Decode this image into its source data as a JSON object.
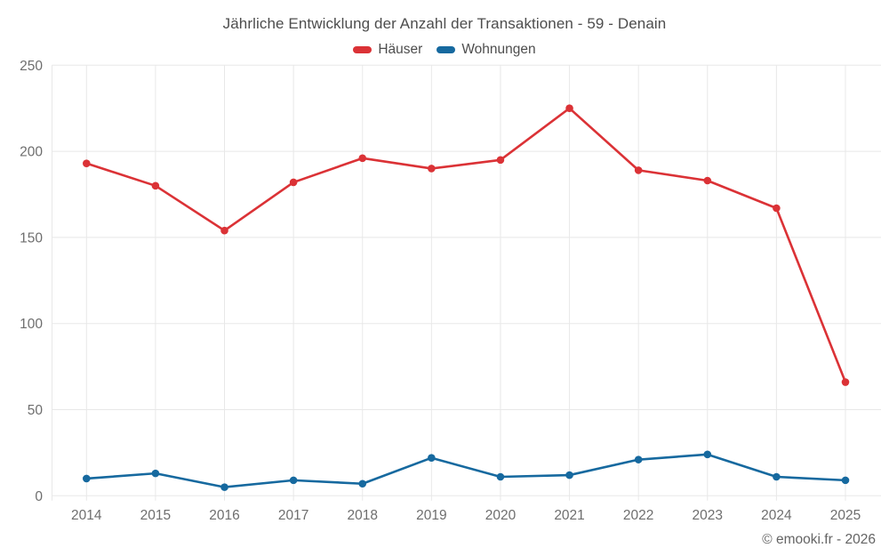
{
  "header": {
    "title": "Jährliche Entwicklung der Anzahl der Transaktionen - 59 - Denain"
  },
  "footer": {
    "credit": "© emooki.fr - 2026"
  },
  "colors": {
    "series_hauser": "#db3236",
    "series_wohnungen": "#16699f",
    "grid": "#e8e8e8",
    "axis_text": "#6e6e6e",
    "title_text": "#4d4d4d",
    "footer_text": "#646464"
  },
  "chart_data": {
    "type": "line",
    "title": "Jährliche Entwicklung der Anzahl der Transaktionen - 59 - Denain",
    "categories": [
      "2014",
      "2015",
      "2016",
      "2017",
      "2018",
      "2019",
      "2020",
      "2021",
      "2022",
      "2023",
      "2024",
      "2025"
    ],
    "series": [
      {
        "name": "Häuser",
        "color": "#db3236",
        "values": [
          193,
          180,
          154,
          182,
          196,
          190,
          195,
          225,
          189,
          183,
          167,
          66
        ]
      },
      {
        "name": "Wohnungen",
        "color": "#16699f",
        "values": [
          10,
          13,
          5,
          9,
          7,
          22,
          11,
          12,
          21,
          24,
          11,
          9
        ]
      }
    ],
    "xlabel": "",
    "ylabel": "",
    "ylim": [
      0,
      250
    ],
    "yticks": [
      0,
      50,
      100,
      150,
      200,
      250
    ],
    "grid": true,
    "legend_position": "top"
  }
}
